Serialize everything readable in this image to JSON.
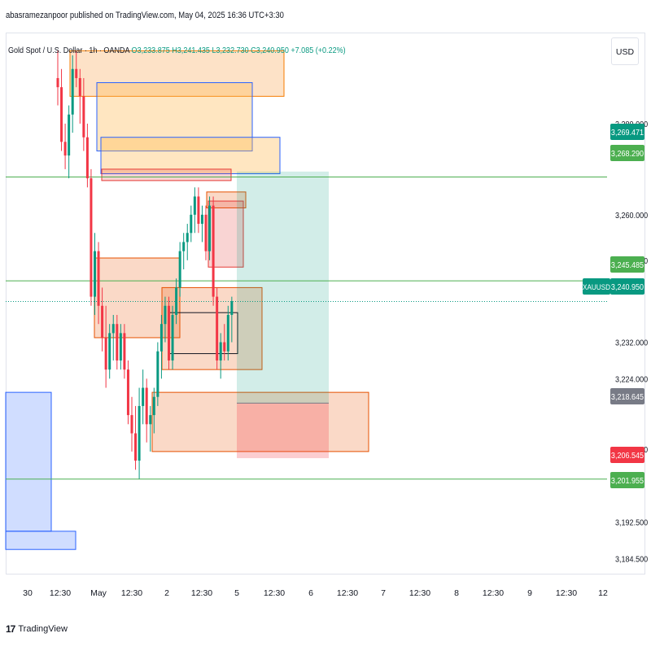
{
  "header": {
    "publisher_line": "abasramezanpoor published on TradingView.com, May 04, 2025 16:36 UTC+3:30"
  },
  "legend": {
    "symbol_desc": "Gold Spot / U.S. Dollar · 1h · OANDA",
    "ohlc": "O3,233.875  H3,241.435  L3,232.730  C3,240.950  +7.085 (+0.22%)"
  },
  "price_axis": {
    "currency": "USD",
    "ticks": [
      "3,280.000",
      "3,260.000",
      "3,250.000",
      "3,232.000",
      "3,224.000",
      "3,208.500",
      "3,192.500",
      "3,184.500"
    ]
  },
  "time_axis": {
    "labels": [
      "30",
      "12:30",
      "May",
      "12:30",
      "2",
      "12:30",
      "5",
      "12:30",
      "6",
      "12:30",
      "7",
      "12:30",
      "8",
      "12:30",
      "9",
      "12:30",
      "12"
    ]
  },
  "price_labels": [
    {
      "text": "3,269.471",
      "color": "#089981"
    },
    {
      "text": "3,268.290",
      "color": "#4caf50"
    },
    {
      "text": "3,245.485",
      "color": "#4caf50"
    },
    {
      "text": "3,240.950",
      "color": "#089981",
      "tag": "XAUUSD"
    },
    {
      "text": "3,218.645",
      "color": "#787b86"
    },
    {
      "text": "3,206.545",
      "color": "#f23645"
    },
    {
      "text": "3,201.955",
      "color": "#4caf50"
    }
  ],
  "footer": {
    "brand": "TradingView"
  },
  "chart_data": {
    "type": "candlestick",
    "symbol": "XAUUSD",
    "timeframe": "1h",
    "y_range": [
      3181,
      3300
    ],
    "last_price": 3240.95,
    "horizontal_levels": [
      3268.29,
      3245.485,
      3201.955
    ],
    "long_position": {
      "entry": 3218.645,
      "target": 3269.471,
      "stop": 3206.545
    },
    "zones": [
      {
        "from": 3296,
        "to": 3286,
        "color": "#f57c00"
      },
      {
        "from": 3289,
        "to": 3274,
        "color": "#2962ff"
      },
      {
        "from": 3277,
        "to": 3269,
        "color": "#2962ff"
      },
      {
        "from": 3270,
        "to": 3267.5,
        "color": "#e53935"
      },
      {
        "from": 3265,
        "to": 3261.5,
        "color": "#e65100"
      },
      {
        "from": 3263,
        "to": 3248.5,
        "color": "#e53935"
      },
      {
        "from": 3250.5,
        "to": 3233,
        "color": "#e65100"
      },
      {
        "from": 3244,
        "to": 3226,
        "color": "#e65100"
      },
      {
        "from": 3238.5,
        "to": 3229.5,
        "color": "#131722"
      },
      {
        "from": 3221,
        "to": 3208,
        "color": "#e65100"
      },
      {
        "from": 3221,
        "to": 3190.5,
        "color": "#2962ff"
      },
      {
        "from": 3190.5,
        "to": 3186.5,
        "color": "#2962ff"
      }
    ],
    "candles": [
      [
        3290,
        3296,
        3284,
        3288
      ],
      [
        3288,
        3292,
        3274,
        3276
      ],
      [
        3276,
        3280,
        3270,
        3273
      ],
      [
        3273,
        3284,
        3268,
        3282
      ],
      [
        3282,
        3295,
        3278,
        3292
      ],
      [
        3292,
        3296,
        3288,
        3290
      ],
      [
        3290,
        3292,
        3280,
        3286
      ],
      [
        3286,
        3290,
        3274,
        3277
      ],
      [
        3277,
        3280,
        3266,
        3268
      ],
      [
        3268,
        3270,
        3240,
        3242
      ],
      [
        3242,
        3256,
        3238,
        3252
      ],
      [
        3252,
        3254,
        3236,
        3240
      ],
      [
        3240,
        3244,
        3230,
        3233
      ],
      [
        3233,
        3240,
        3222,
        3226
      ],
      [
        3226,
        3236,
        3224,
        3234
      ],
      [
        3234,
        3238,
        3228,
        3236
      ],
      [
        3236,
        3238,
        3226,
        3228
      ],
      [
        3228,
        3236,
        3226,
        3234
      ],
      [
        3234,
        3236,
        3224,
        3226
      ],
      [
        3226,
        3228,
        3214,
        3216
      ],
      [
        3216,
        3220,
        3208,
        3212
      ],
      [
        3212,
        3218,
        3204,
        3206
      ],
      [
        3206,
        3222,
        3202,
        3218
      ],
      [
        3218,
        3226,
        3214,
        3222
      ],
      [
        3222,
        3224,
        3210,
        3214
      ],
      [
        3214,
        3218,
        3208,
        3216
      ],
      [
        3216,
        3222,
        3212,
        3220
      ],
      [
        3220,
        3232,
        3218,
        3230
      ],
      [
        3230,
        3238,
        3224,
        3236
      ],
      [
        3236,
        3242,
        3232,
        3240
      ],
      [
        3240,
        3242,
        3226,
        3228
      ],
      [
        3228,
        3240,
        3226,
        3238
      ],
      [
        3238,
        3246,
        3236,
        3244
      ],
      [
        3244,
        3254,
        3242,
        3252
      ],
      [
        3252,
        3256,
        3248,
        3254
      ],
      [
        3254,
        3258,
        3250,
        3256
      ],
      [
        3256,
        3262,
        3254,
        3260
      ],
      [
        3260,
        3266,
        3256,
        3264
      ],
      [
        3264,
        3266,
        3256,
        3258
      ],
      [
        3258,
        3262,
        3254,
        3260
      ],
      [
        3260,
        3262,
        3250,
        3252
      ],
      [
        3252,
        3264,
        3250,
        3262
      ],
      [
        3262,
        3264,
        3240,
        3242
      ],
      [
        3242,
        3244,
        3226,
        3228
      ],
      [
        3228,
        3234,
        3224,
        3232
      ],
      [
        3232,
        3236,
        3228,
        3230
      ],
      [
        3230,
        3240,
        3228,
        3238
      ],
      [
        3238,
        3242,
        3232,
        3241
      ]
    ]
  }
}
